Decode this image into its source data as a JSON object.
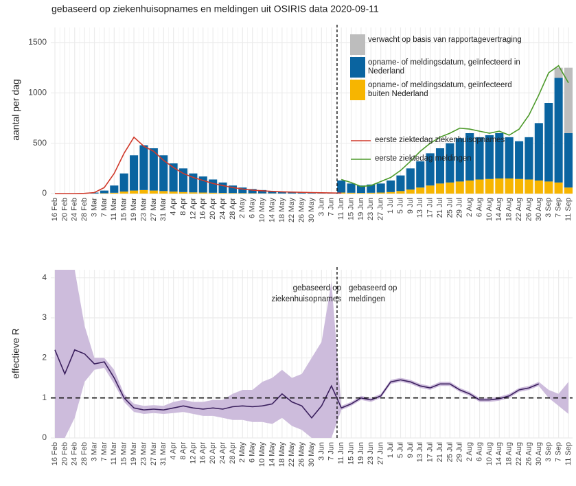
{
  "chart_data": [
    {
      "type": "bar",
      "title": "gebaseerd op ziekenhuisopnames en meldingen uit OSIRIS data 2020-09-11",
      "ylabel": "aantal per dag",
      "categories": [
        "16 Feb",
        "20 Feb",
        "24 Feb",
        "28 Feb",
        "3 Mar",
        "7 Mar",
        "11 Mar",
        "15 Mar",
        "19 Mar",
        "23 Mar",
        "27 Mar",
        "31 Mar",
        "4 Apr",
        "8 Apr",
        "12 Apr",
        "16 Apr",
        "20 Apr",
        "24 Apr",
        "28 Apr",
        "2 May",
        "6 May",
        "10 May",
        "14 May",
        "18 May",
        "22 May",
        "26 May",
        "30 May",
        "3 Jun",
        "7 Jun",
        "11 Jun",
        "15 Jun",
        "19 Jun",
        "23 Jun",
        "27 Jun",
        "1 Jul",
        "5 Jul",
        "9 Jul",
        "13 Jul",
        "17 Jul",
        "21 Jul",
        "25 Jul",
        "29 Jul",
        "2 Aug",
        "6 Aug",
        "10 Aug",
        "14 Aug",
        "18 Aug",
        "22 Aug",
        "26 Aug",
        "30 Aug",
        "3 Sep",
        "7 Sep",
        "11 Sep"
      ],
      "ylim": [
        0,
        1650
      ],
      "yticks": [
        0,
        500,
        1000,
        1500
      ],
      "grid": true,
      "vline": "11 Jun",
      "series": [
        {
          "name": "opname- of meldingsdatum, geïnfecteerd buiten Nederland",
          "color": "#f7b500",
          "values": [
            0,
            0,
            0,
            0,
            1,
            3,
            8,
            20,
            30,
            35,
            30,
            25,
            20,
            15,
            12,
            10,
            8,
            6,
            5,
            4,
            3,
            2,
            2,
            1,
            1,
            1,
            1,
            1,
            0,
            10,
            8,
            6,
            8,
            10,
            15,
            25,
            40,
            60,
            80,
            100,
            110,
            120,
            130,
            140,
            145,
            150,
            150,
            145,
            140,
            130,
            120,
            110,
            60
          ]
        },
        {
          "name": "opname- of meldingsdatum, geïnfecteerd in Nederland",
          "color": "#0a64a0",
          "values": [
            0,
            0,
            0,
            2,
            9,
            27,
            72,
            180,
            350,
            445,
            420,
            355,
            280,
            235,
            188,
            160,
            132,
            104,
            75,
            56,
            42,
            33,
            23,
            19,
            14,
            11,
            9,
            7,
            6,
            120,
            92,
            74,
            82,
            90,
            115,
            155,
            210,
            260,
            320,
            350,
            390,
            430,
            470,
            420,
            435,
            450,
            410,
            375,
            420,
            570,
            780,
            1040,
            540
          ]
        },
        {
          "name": "verwacht op basis van rapportagevertraging",
          "color": "#bdbdbd",
          "values": [
            0,
            0,
            0,
            0,
            0,
            0,
            0,
            0,
            0,
            0,
            0,
            0,
            0,
            0,
            0,
            0,
            0,
            0,
            0,
            0,
            0,
            0,
            0,
            0,
            0,
            0,
            0,
            0,
            0,
            0,
            0,
            0,
            0,
            0,
            0,
            0,
            0,
            0,
            0,
            0,
            0,
            0,
            0,
            0,
            0,
            0,
            0,
            0,
            0,
            0,
            0,
            100,
            650
          ]
        }
      ],
      "lines": [
        {
          "name": "eerste ziektedag ziekenhuisopnames",
          "color": "#d0392a",
          "values": [
            0,
            0,
            0,
            2,
            10,
            60,
            200,
            400,
            560,
            470,
            420,
            330,
            260,
            200,
            160,
            130,
            100,
            80,
            60,
            45,
            35,
            28,
            22,
            18,
            15,
            12,
            10,
            8,
            6,
            5,
            null,
            null,
            null,
            null,
            null,
            null,
            null,
            null,
            null,
            null,
            null,
            null,
            null,
            null,
            null,
            null,
            null,
            null,
            null,
            null,
            null,
            null,
            null
          ]
        },
        {
          "name": "eerste ziektedag meldingen",
          "color": "#4d9a2a",
          "values": [
            null,
            null,
            null,
            null,
            null,
            null,
            null,
            null,
            null,
            null,
            null,
            null,
            null,
            null,
            null,
            null,
            null,
            null,
            null,
            null,
            null,
            null,
            null,
            null,
            null,
            null,
            null,
            null,
            null,
            140,
            110,
            70,
            80,
            120,
            160,
            230,
            320,
            420,
            500,
            560,
            600,
            650,
            640,
            620,
            600,
            620,
            580,
            640,
            780,
            980,
            1200,
            1270,
            1100
          ]
        }
      ]
    },
    {
      "type": "line",
      "ylabel": "effectieve R",
      "annotations": [
        "gebaseerd op ziekenhuisopnames",
        "gebaseerd op meldingen"
      ],
      "categories": [
        "16 Feb",
        "20 Feb",
        "24 Feb",
        "28 Feb",
        "3 Mar",
        "7 Mar",
        "11 Mar",
        "15 Mar",
        "19 Mar",
        "23 Mar",
        "27 Mar",
        "31 Mar",
        "4 Apr",
        "8 Apr",
        "12 Apr",
        "16 Apr",
        "20 Apr",
        "24 Apr",
        "28 Apr",
        "2 May",
        "6 May",
        "10 May",
        "14 May",
        "18 May",
        "22 May",
        "26 May",
        "30 May",
        "3 Jun",
        "7 Jun",
        "11 Jun",
        "15 Jun",
        "19 Jun",
        "23 Jun",
        "27 Jun",
        "1 Jul",
        "5 Jul",
        "9 Jul",
        "13 Jul",
        "17 Jul",
        "21 Jul",
        "25 Jul",
        "29 Jul",
        "2 Aug",
        "6 Aug",
        "10 Aug",
        "14 Aug",
        "18 Aug",
        "22 Aug",
        "26 Aug",
        "30 Aug",
        "3 Sep",
        "7 Sep",
        "11 Sep"
      ],
      "ylim": [
        0,
        4.2
      ],
      "yticks": [
        0,
        1,
        2,
        3,
        4
      ],
      "grid": true,
      "vline": "11 Jun",
      "hline": 1,
      "series": [
        {
          "color": "#3a1f5d",
          "band_color": "#cdbcdc",
          "values": [
            2.2,
            1.6,
            2.2,
            2.1,
            1.85,
            1.9,
            1.5,
            1.0,
            0.75,
            0.7,
            0.72,
            0.7,
            0.75,
            0.8,
            0.75,
            0.72,
            0.75,
            0.72,
            0.78,
            0.8,
            0.78,
            0.8,
            0.85,
            1.1,
            0.9,
            0.8,
            0.5,
            0.8,
            1.3,
            0.75,
            0.85,
            1.0,
            0.95,
            1.05,
            1.4,
            1.45,
            1.4,
            1.3,
            1.25,
            1.35,
            1.35,
            1.2,
            1.1,
            0.95,
            0.95,
            0.98,
            1.05,
            1.2,
            1.25,
            1.35,
            null,
            null,
            null
          ],
          "lower": [
            0,
            0,
            0.5,
            1.4,
            1.7,
            1.75,
            1.35,
            0.9,
            0.65,
            0.6,
            0.62,
            0.6,
            0.62,
            0.65,
            0.6,
            0.55,
            0.55,
            0.5,
            0.45,
            0.45,
            0.4,
            0.4,
            0.35,
            0.5,
            0.3,
            0.2,
            0,
            0,
            0,
            0.7,
            0.8,
            0.95,
            0.9,
            1.0,
            1.35,
            1.4,
            1.35,
            1.25,
            1.2,
            1.3,
            1.3,
            1.15,
            1.05,
            0.9,
            0.9,
            0.93,
            1.0,
            1.15,
            1.2,
            1.3,
            1.0,
            0.8,
            0.6
          ],
          "upper": [
            4.2,
            4.2,
            4.2,
            2.8,
            2.0,
            2.0,
            1.7,
            1.1,
            0.85,
            0.8,
            0.82,
            0.8,
            0.9,
            0.95,
            0.9,
            0.9,
            0.95,
            0.95,
            1.1,
            1.2,
            1.2,
            1.4,
            1.5,
            1.7,
            1.5,
            1.6,
            2.0,
            2.4,
            3.9,
            0.8,
            0.9,
            1.05,
            1.0,
            1.1,
            1.45,
            1.5,
            1.45,
            1.35,
            1.3,
            1.4,
            1.4,
            1.25,
            1.15,
            1.0,
            1.0,
            1.03,
            1.1,
            1.25,
            1.3,
            1.4,
            1.2,
            1.1,
            1.4
          ]
        }
      ]
    }
  ]
}
